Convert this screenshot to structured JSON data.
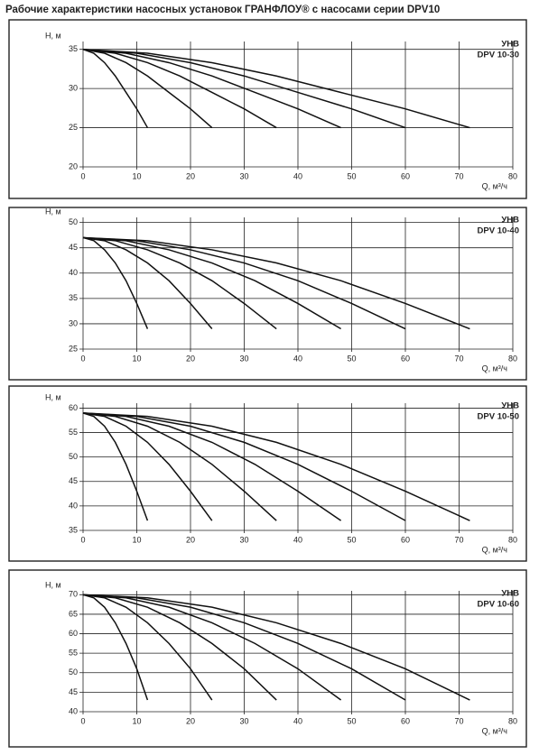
{
  "title": "Рабочие характеристики насосных установок  ГРАНФЛОУ® с насосами серии DPV10",
  "chart_data": [
    {
      "type": "line",
      "y_label": "H, м",
      "x_label": "Q, м³/ч",
      "annotation": [
        "УНВ",
        "DPV 10-30"
      ],
      "xlim": [
        0,
        80
      ],
      "xticks": [
        0,
        10,
        20,
        30,
        40,
        50,
        60,
        70,
        80
      ],
      "ylim": [
        20,
        36
      ],
      "yticks": [
        20,
        25,
        30,
        35
      ],
      "grid": true,
      "series": [
        {
          "color": "#111111",
          "x": [
            0,
            2,
            4,
            6,
            8,
            10,
            12
          ],
          "values": [
            35,
            34.5,
            33.3,
            31.6,
            29.5,
            27.4,
            25
          ]
        },
        {
          "color": "#111111",
          "x": [
            0,
            4,
            8,
            12,
            16,
            20,
            24
          ],
          "values": [
            35,
            34.5,
            33.3,
            31.6,
            29.5,
            27.4,
            25
          ]
        },
        {
          "color": "#111111",
          "x": [
            0,
            6,
            12,
            18,
            24,
            30,
            36
          ],
          "values": [
            35,
            34.5,
            33.3,
            31.6,
            29.5,
            27.4,
            25
          ]
        },
        {
          "color": "#111111",
          "x": [
            0,
            8,
            16,
            24,
            32,
            40,
            48
          ],
          "values": [
            35,
            34.5,
            33.3,
            31.6,
            29.5,
            27.4,
            25
          ]
        },
        {
          "color": "#111111",
          "x": [
            0,
            10,
            20,
            30,
            40,
            50,
            60
          ],
          "values": [
            35,
            34.5,
            33.3,
            31.6,
            29.5,
            27.4,
            25
          ]
        },
        {
          "color": "#111111",
          "x": [
            0,
            12,
            24,
            36,
            48,
            60,
            72
          ],
          "values": [
            35,
            34.5,
            33.3,
            31.6,
            29.5,
            27.4,
            25
          ]
        }
      ]
    },
    {
      "type": "line",
      "y_label": "H, м",
      "x_label": "Q, м³/ч",
      "annotation": [
        "УНВ",
        "DPV 10-40"
      ],
      "xlim": [
        0,
        80
      ],
      "xticks": [
        0,
        10,
        20,
        30,
        40,
        50,
        60,
        70,
        80
      ],
      "ylim": [
        25,
        51
      ],
      "yticks": [
        25,
        30,
        35,
        40,
        45,
        50
      ],
      "grid": true,
      "series": [
        {
          "color": "#111111",
          "x": [
            0,
            2,
            4,
            6,
            8,
            10,
            12
          ],
          "values": [
            47,
            46.4,
            44.6,
            42,
            38.5,
            34,
            29
          ]
        },
        {
          "color": "#111111",
          "x": [
            0,
            4,
            8,
            12,
            16,
            20,
            24
          ],
          "values": [
            47,
            46.4,
            44.6,
            42,
            38.5,
            34,
            29
          ]
        },
        {
          "color": "#111111",
          "x": [
            0,
            6,
            12,
            18,
            24,
            30,
            36
          ],
          "values": [
            47,
            46.4,
            44.6,
            42,
            38.5,
            34,
            29
          ]
        },
        {
          "color": "#111111",
          "x": [
            0,
            8,
            16,
            24,
            32,
            40,
            48
          ],
          "values": [
            47,
            46.4,
            44.6,
            42,
            38.5,
            34,
            29
          ]
        },
        {
          "color": "#111111",
          "x": [
            0,
            10,
            20,
            30,
            40,
            50,
            60
          ],
          "values": [
            47,
            46.4,
            44.6,
            42,
            38.5,
            34,
            29
          ]
        },
        {
          "color": "#111111",
          "x": [
            0,
            12,
            24,
            36,
            48,
            60,
            72
          ],
          "values": [
            47,
            46.4,
            44.6,
            42,
            38.5,
            34,
            29
          ]
        }
      ]
    },
    {
      "type": "line",
      "y_label": "H, м",
      "x_label": "Q, м³/ч",
      "annotation": [
        "УНВ",
        "DPV 10-50"
      ],
      "xlim": [
        0,
        80
      ],
      "xticks": [
        0,
        10,
        20,
        30,
        40,
        50,
        60,
        70,
        80
      ],
      "ylim": [
        35,
        61
      ],
      "yticks": [
        35,
        40,
        45,
        50,
        55,
        60
      ],
      "grid": true,
      "series": [
        {
          "color": "#111111",
          "x": [
            0,
            2,
            4,
            6,
            8,
            10,
            12
          ],
          "values": [
            59,
            58.3,
            56.3,
            53,
            48.5,
            43,
            37
          ]
        },
        {
          "color": "#111111",
          "x": [
            0,
            4,
            8,
            12,
            16,
            20,
            24
          ],
          "values": [
            59,
            58.3,
            56.3,
            53,
            48.5,
            43,
            37
          ]
        },
        {
          "color": "#111111",
          "x": [
            0,
            6,
            12,
            18,
            24,
            30,
            36
          ],
          "values": [
            59,
            58.3,
            56.3,
            53,
            48.5,
            43,
            37
          ]
        },
        {
          "color": "#111111",
          "x": [
            0,
            8,
            16,
            24,
            32,
            40,
            48
          ],
          "values": [
            59,
            58.3,
            56.3,
            53,
            48.5,
            43,
            37
          ]
        },
        {
          "color": "#111111",
          "x": [
            0,
            10,
            20,
            30,
            40,
            50,
            60
          ],
          "values": [
            59,
            58.3,
            56.3,
            53,
            48.5,
            43,
            37
          ]
        },
        {
          "color": "#111111",
          "x": [
            0,
            12,
            24,
            36,
            48,
            60,
            72
          ],
          "values": [
            59,
            58.3,
            56.3,
            53,
            48.5,
            43,
            37
          ]
        }
      ]
    },
    {
      "type": "line",
      "y_label": "H, м",
      "x_label": "Q, м³/ч",
      "annotation": [
        "УНВ",
        "DPV 10-60"
      ],
      "xlim": [
        0,
        80
      ],
      "xticks": [
        0,
        10,
        20,
        30,
        40,
        50,
        60,
        70,
        80
      ],
      "ylim": [
        40,
        71
      ],
      "yticks": [
        40,
        45,
        50,
        55,
        60,
        65,
        70
      ],
      "grid": true,
      "series": [
        {
          "color": "#111111",
          "x": [
            0,
            2,
            4,
            6,
            8,
            10,
            12
          ],
          "values": [
            70,
            69.2,
            66.8,
            62.8,
            57.5,
            51,
            43
          ]
        },
        {
          "color": "#111111",
          "x": [
            0,
            4,
            8,
            12,
            16,
            20,
            24
          ],
          "values": [
            70,
            69.2,
            66.8,
            62.8,
            57.5,
            51,
            43
          ]
        },
        {
          "color": "#111111",
          "x": [
            0,
            6,
            12,
            18,
            24,
            30,
            36
          ],
          "values": [
            70,
            69.2,
            66.8,
            62.8,
            57.5,
            51,
            43
          ]
        },
        {
          "color": "#111111",
          "x": [
            0,
            8,
            16,
            24,
            32,
            40,
            48
          ],
          "values": [
            70,
            69.2,
            66.8,
            62.8,
            57.5,
            51,
            43
          ]
        },
        {
          "color": "#111111",
          "x": [
            0,
            10,
            20,
            30,
            40,
            50,
            60
          ],
          "values": [
            70,
            69.2,
            66.8,
            62.8,
            57.5,
            51,
            43
          ]
        },
        {
          "color": "#111111",
          "x": [
            0,
            12,
            24,
            36,
            48,
            60,
            72
          ],
          "values": [
            70,
            69.2,
            66.8,
            62.8,
            57.5,
            51,
            43
          ]
        }
      ]
    }
  ]
}
